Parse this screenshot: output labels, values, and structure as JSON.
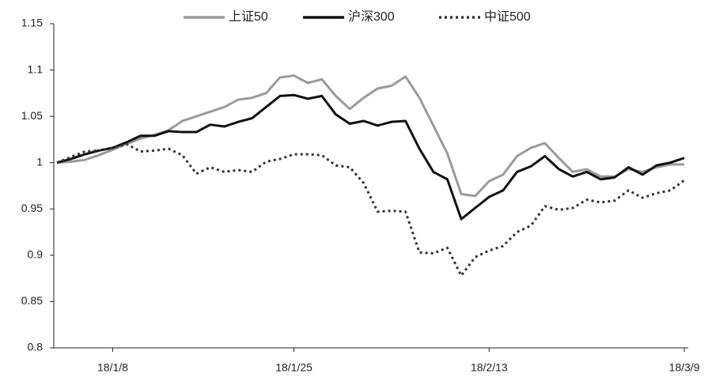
{
  "chart_data": {
    "type": "line",
    "categories": [
      null,
      null,
      null,
      null,
      "18/1/8",
      null,
      null,
      null,
      null,
      null,
      null,
      null,
      null,
      null,
      null,
      null,
      null,
      "18/1/25",
      null,
      null,
      null,
      null,
      null,
      null,
      null,
      null,
      null,
      null,
      null,
      null,
      null,
      "18/2/13",
      null,
      null,
      null,
      null,
      null,
      null,
      null,
      null,
      null,
      null,
      null,
      null,
      null,
      "18/3/9"
    ],
    "series": [
      {
        "name": "上证50",
        "color": "#9a9a9a",
        "line_style": "solid",
        "values": [
          1.0,
          1.001,
          1.003,
          1.008,
          1.014,
          1.02,
          1.026,
          1.03,
          1.035,
          1.045,
          1.05,
          1.055,
          1.06,
          1.068,
          1.07,
          1.075,
          1.092,
          1.094,
          1.086,
          1.09,
          1.072,
          1.058,
          1.07,
          1.08,
          1.083,
          1.093,
          1.07,
          1.04,
          1.01,
          0.966,
          0.964,
          0.98,
          0.987,
          1.007,
          1.016,
          1.021,
          1.005,
          0.99,
          0.993,
          0.985,
          0.985,
          0.993,
          0.99,
          0.995,
          0.998,
          0.998
        ]
      },
      {
        "name": "沪深300",
        "color": "#111111",
        "line_style": "solid",
        "values": [
          1.0,
          1.004,
          1.009,
          1.013,
          1.016,
          1.022,
          1.029,
          1.029,
          1.034,
          1.033,
          1.033,
          1.041,
          1.039,
          1.044,
          1.048,
          1.06,
          1.072,
          1.073,
          1.069,
          1.072,
          1.052,
          1.042,
          1.045,
          1.04,
          1.044,
          1.045,
          1.015,
          0.99,
          0.982,
          0.939,
          0.951,
          0.963,
          0.97,
          0.99,
          0.996,
          1.007,
          0.993,
          0.985,
          0.99,
          0.982,
          0.984,
          0.995,
          0.987,
          0.997,
          1.0,
          1.005
        ]
      },
      {
        "name": "中证500",
        "color": "#333333",
        "line_style": "dotted",
        "values": [
          1.0,
          1.006,
          1.012,
          1.013,
          1.016,
          1.02,
          1.012,
          1.013,
          1.015,
          1.008,
          0.988,
          0.995,
          0.99,
          0.992,
          0.99,
          1.001,
          1.004,
          1.009,
          1.009,
          1.008,
          0.997,
          0.995,
          0.978,
          0.947,
          0.948,
          0.947,
          0.903,
          0.902,
          0.908,
          0.878,
          0.898,
          0.905,
          0.91,
          0.925,
          0.932,
          0.953,
          0.949,
          0.951,
          0.96,
          0.957,
          0.959,
          0.97,
          0.962,
          0.967,
          0.97,
          0.981
        ]
      }
    ],
    "ylim": [
      0.8,
      1.15
    ],
    "yticks": [
      0.8,
      0.85,
      0.9,
      0.95,
      1,
      1.05,
      1.1,
      1.15
    ],
    "grid": false,
    "legend": "top"
  }
}
